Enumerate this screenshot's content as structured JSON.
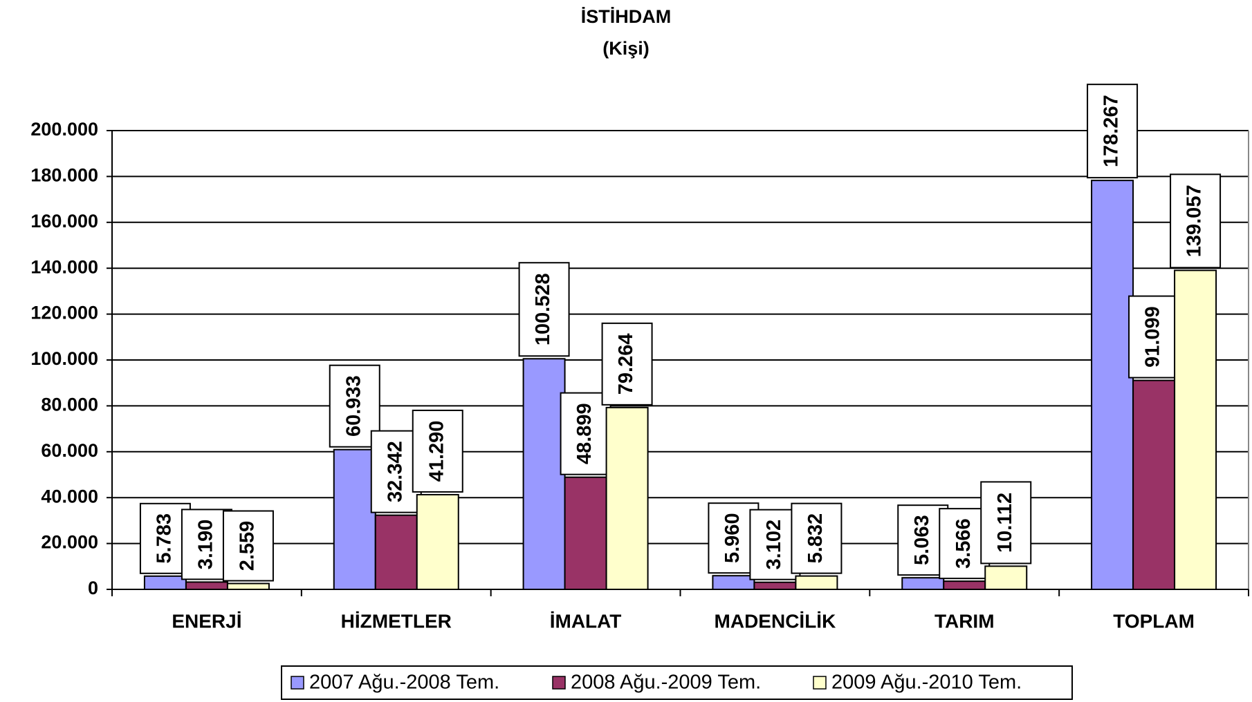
{
  "chart_data": {
    "type": "bar",
    "title": "İSTİHDAM",
    "subtitle": "(Kişi)",
    "categories": [
      "ENERJİ",
      "HİZMETLER",
      "İMALAT",
      "MADENCİLİK",
      "TARIM",
      "TOPLAM"
    ],
    "series": [
      {
        "name": "2007 Ağu.-2008 Tem.",
        "color": "#9999ff",
        "values": [
          5783,
          60933,
          100528,
          5960,
          5063,
          178267
        ],
        "value_labels": [
          "5.783",
          "60.933",
          "100.528",
          "5.960",
          "5.063",
          "178.267"
        ]
      },
      {
        "name": "2008 Ağu.-2009 Tem.",
        "color": "#993366",
        "values": [
          3190,
          32342,
          48899,
          3102,
          3566,
          91099
        ],
        "value_labels": [
          "3.190",
          "32.342",
          "48.899",
          "3.102",
          "3.566",
          "91.099"
        ]
      },
      {
        "name": "2009 Ağu.-2010 Tem.",
        "color": "#ffffcc",
        "values": [
          2559,
          41290,
          79264,
          5832,
          10112,
          139057
        ],
        "value_labels": [
          "2.559",
          "41.290",
          "79.264",
          "5.832",
          "10.112",
          "139.057"
        ]
      }
    ],
    "ylim": [
      0,
      200000
    ],
    "yticks": [
      0,
      {
        "value": 20000,
        "label": "20.000"
      },
      {
        "value": 40000,
        "label": "40.000"
      },
      {
        "value": 60000,
        "label": "60.000"
      },
      {
        "value": 80000,
        "label": "80.000"
      },
      {
        "value": 100000,
        "label": "100.000"
      },
      {
        "value": 120000,
        "label": "120.000"
      },
      {
        "value": 140000,
        "label": "140.000"
      },
      {
        "value": 160000,
        "label": "160.000"
      },
      {
        "value": 180000,
        "label": "180.000"
      },
      {
        "value": 200000,
        "label": "200.000"
      }
    ],
    "grid": true,
    "legend": "bottom"
  }
}
